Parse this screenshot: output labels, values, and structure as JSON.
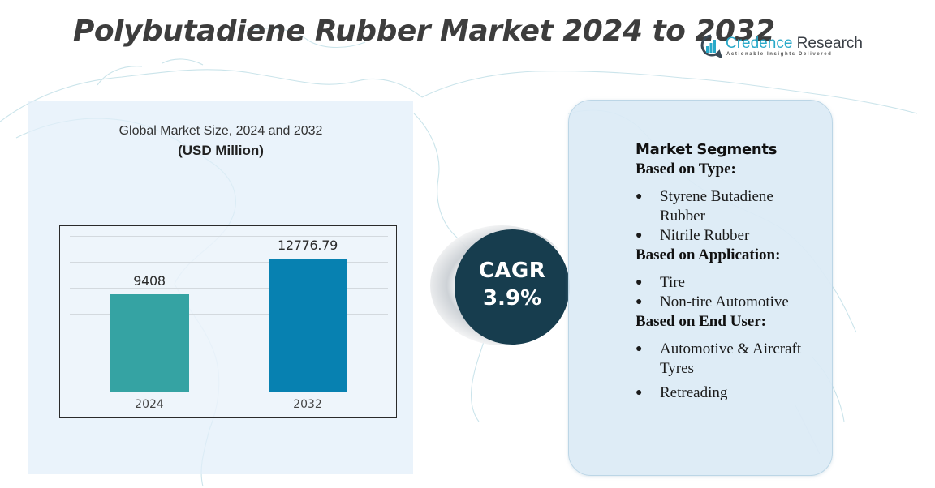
{
  "header": {
    "title": "Polybutadiene Rubber Market 2024 to 2032",
    "logo": {
      "name_part1": "Credence",
      "name_part2": " Research",
      "tagline": "Actionable Insights Delivered",
      "icon": "bar-chart-circle-icon"
    }
  },
  "left_panel": {
    "subtitle": "Global Market Size,  2024 and 2032",
    "unit": "(USD Million)"
  },
  "chart_data": {
    "type": "bar",
    "title": "Global Market Size, 2024 and 2032",
    "ylabel": "USD Million",
    "xlabel": "",
    "categories": [
      "2024",
      "2032"
    ],
    "values": [
      9408,
      12776.79
    ],
    "value_labels": [
      "9408",
      "12776.79"
    ],
    "colors": [
      "#35a3a3",
      "#0781b1"
    ],
    "grid": true,
    "gridlines": 7,
    "legend": "none",
    "ylim": [
      0,
      15000
    ],
    "yaxis_visible": false
  },
  "cagr": {
    "label": "CAGR",
    "value": "3.9%",
    "color": "#173d4e"
  },
  "segments": {
    "heading": "Market Segments",
    "groups": [
      {
        "title": "Based on Type:",
        "items": [
          "Styrene Butadiene Rubber",
          "Nitrile Rubber"
        ]
      },
      {
        "title": "Based on Application:",
        "items": [
          "Tire",
          "Non-tire Automotive"
        ]
      },
      {
        "title": "Based on End User:",
        "items": [
          "Automotive & Aircraft Tyres",
          "Retreading"
        ]
      }
    ]
  }
}
